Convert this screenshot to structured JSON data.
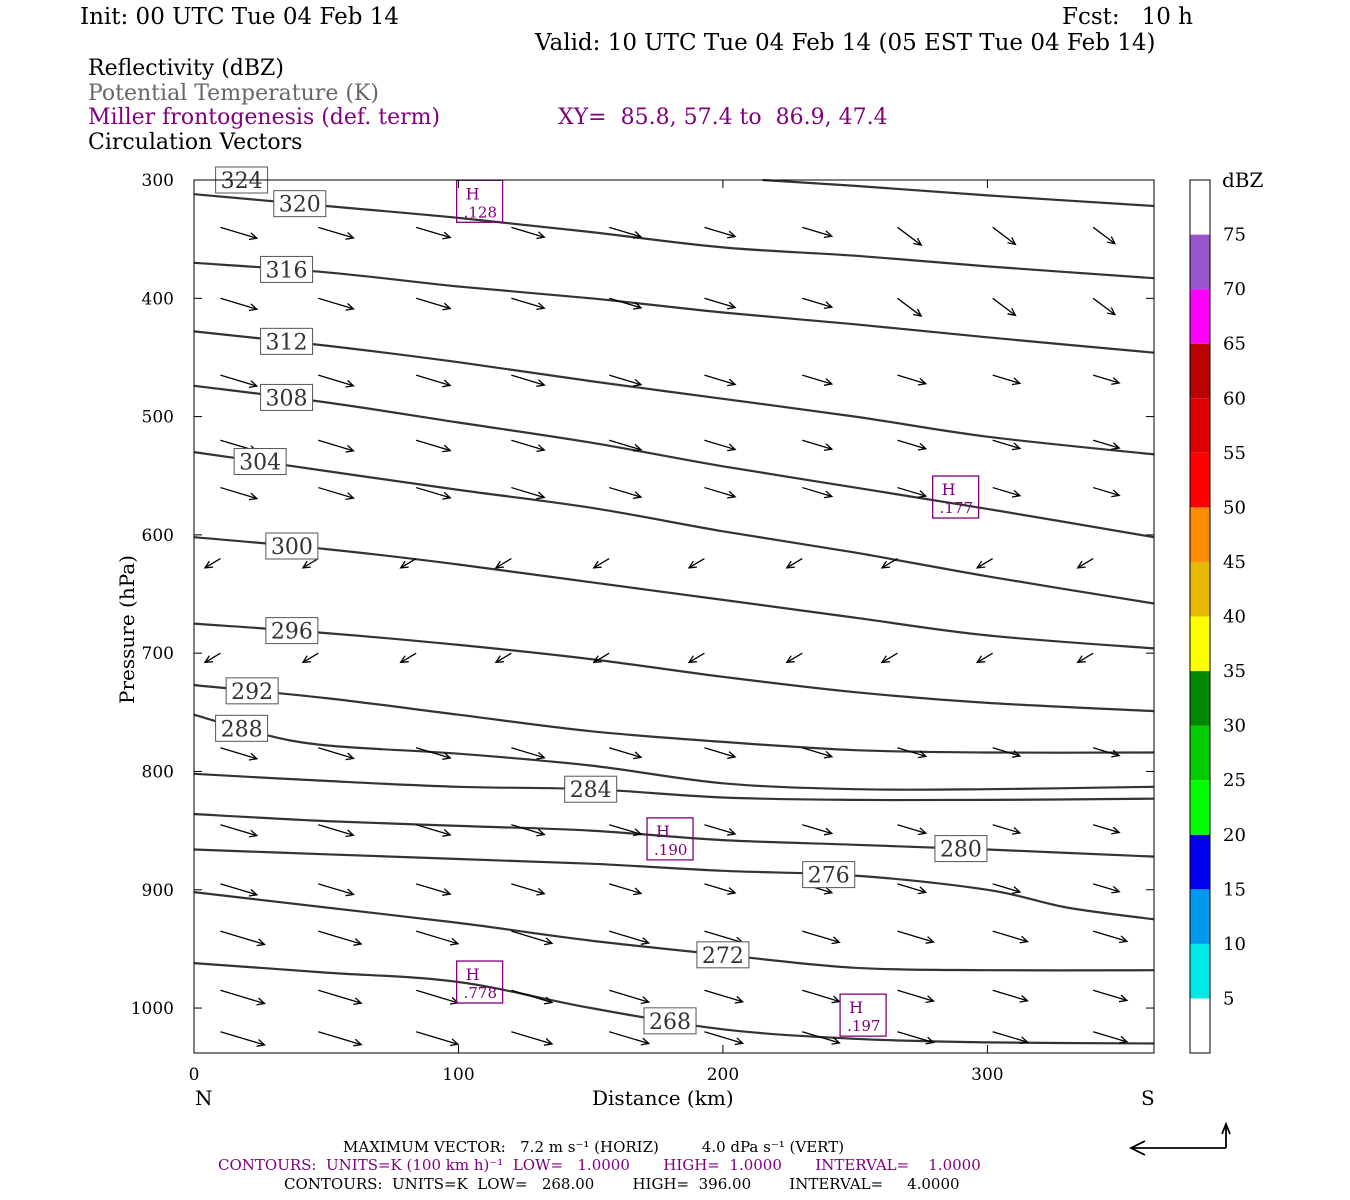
{
  "header": {
    "init": "Init: 00 UTC Tue 04 Feb 14",
    "fcst": "Fcst:   10 h",
    "valid": "Valid: 10 UTC Tue 04 Feb 14 (05 EST Tue 04 Feb 14)"
  },
  "legend": {
    "reflectivity": "Reflectivity (dBZ)",
    "theta": "Potential Temperature (K)",
    "miller": "Miller frontogenesis (def. term)",
    "xy": "XY=  85.8, 57.4 to  86.9, 47.4",
    "circulation": "Circulation Vectors"
  },
  "colors": {
    "purple": "#800080",
    "theta_gray": "#666666",
    "contour": "#333333"
  },
  "chart_data": {
    "type": "cross-section",
    "xlabel": "Distance (km)",
    "ylabel": "Pressure (hPa)",
    "xlim": [
      0,
      363
    ],
    "ylim": [
      300,
      1038
    ],
    "x_ticks": [
      0,
      100,
      200,
      300
    ],
    "y_ticks": [
      300,
      400,
      500,
      600,
      700,
      800,
      900,
      1000
    ],
    "x_end_labels": {
      "left": "N",
      "right": "S"
    },
    "colorbar": {
      "title": "dBZ",
      "levels": [
        5,
        10,
        15,
        20,
        25,
        30,
        35,
        40,
        45,
        50,
        55,
        60,
        65,
        70,
        75
      ],
      "colors": [
        "#ffffff",
        "#00e8e8",
        "#0099ee",
        "#0000ee",
        "#00ff00",
        "#00cc00",
        "#008800",
        "#ffff00",
        "#e6b800",
        "#ff8c00",
        "#ff0000",
        "#dd0000",
        "#bb0000",
        "#ff00ff",
        "#9955cc",
        "#ffffff"
      ]
    },
    "theta_contours": [
      {
        "label": "324",
        "points": [
          [
            215,
            300
          ],
          [
            250,
            305
          ],
          [
            300,
            313
          ],
          [
            363,
            322
          ]
        ]
      },
      {
        "label": "320",
        "points": [
          [
            0,
            312
          ],
          [
            50,
            322
          ],
          [
            100,
            332
          ],
          [
            150,
            344
          ],
          [
            200,
            357
          ],
          [
            250,
            364
          ],
          [
            300,
            373
          ],
          [
            363,
            383
          ]
        ]
      },
      {
        "label": "316",
        "points": [
          [
            0,
            370
          ],
          [
            50,
            378
          ],
          [
            100,
            390
          ],
          [
            150,
            400
          ],
          [
            200,
            412
          ],
          [
            250,
            422
          ],
          [
            300,
            433
          ],
          [
            363,
            446
          ]
        ]
      },
      {
        "label": "312",
        "points": [
          [
            0,
            428
          ],
          [
            50,
            440
          ],
          [
            100,
            454
          ],
          [
            150,
            470
          ],
          [
            200,
            485
          ],
          [
            250,
            500
          ],
          [
            300,
            517
          ],
          [
            363,
            532
          ]
        ]
      },
      {
        "label": "308",
        "points": [
          [
            0,
            474
          ],
          [
            50,
            488
          ],
          [
            100,
            505
          ],
          [
            150,
            522
          ],
          [
            200,
            542
          ],
          [
            250,
            560
          ],
          [
            300,
            578
          ],
          [
            363,
            602
          ]
        ]
      },
      {
        "label": "304",
        "points": [
          [
            0,
            530
          ],
          [
            50,
            546
          ],
          [
            100,
            562
          ],
          [
            150,
            577
          ],
          [
            200,
            597
          ],
          [
            250,
            615
          ],
          [
            300,
            635
          ],
          [
            363,
            658
          ]
        ]
      },
      {
        "label": "300",
        "points": [
          [
            0,
            602
          ],
          [
            50,
            612
          ],
          [
            100,
            625
          ],
          [
            150,
            640
          ],
          [
            200,
            655
          ],
          [
            250,
            670
          ],
          [
            300,
            685
          ],
          [
            363,
            696
          ]
        ]
      },
      {
        "label": "296",
        "points": [
          [
            0,
            675
          ],
          [
            50,
            683
          ],
          [
            100,
            693
          ],
          [
            150,
            705
          ],
          [
            200,
            720
          ],
          [
            250,
            733
          ],
          [
            300,
            742
          ],
          [
            363,
            749
          ]
        ]
      },
      {
        "label": "292",
        "points": [
          [
            0,
            727
          ],
          [
            50,
            738
          ],
          [
            100,
            752
          ],
          [
            150,
            766
          ],
          [
            200,
            775
          ],
          [
            250,
            782
          ],
          [
            300,
            784
          ],
          [
            363,
            784
          ]
        ]
      },
      {
        "label": "288",
        "points": [
          [
            0,
            752
          ],
          [
            25,
            768
          ],
          [
            50,
            778
          ],
          [
            100,
            785
          ],
          [
            150,
            795
          ],
          [
            200,
            810
          ],
          [
            250,
            815
          ],
          [
            300,
            815
          ],
          [
            363,
            813
          ]
        ]
      },
      {
        "label": "284",
        "points": [
          [
            0,
            802
          ],
          [
            50,
            808
          ],
          [
            100,
            813
          ],
          [
            150,
            815
          ],
          [
            200,
            822
          ],
          [
            250,
            824
          ],
          [
            300,
            824
          ],
          [
            363,
            823
          ]
        ]
      },
      {
        "label": "280",
        "points": [
          [
            0,
            836
          ],
          [
            50,
            842
          ],
          [
            100,
            846
          ],
          [
            150,
            850
          ],
          [
            200,
            858
          ],
          [
            250,
            862
          ],
          [
            300,
            866
          ],
          [
            363,
            872
          ]
        ]
      },
      {
        "label": "276",
        "points": [
          [
            0,
            866
          ],
          [
            50,
            870
          ],
          [
            100,
            874
          ],
          [
            150,
            878
          ],
          [
            200,
            884
          ],
          [
            250,
            888
          ],
          [
            300,
            900
          ],
          [
            330,
            915
          ],
          [
            363,
            925
          ]
        ]
      },
      {
        "label": "272",
        "points": [
          [
            0,
            902
          ],
          [
            50,
            915
          ],
          [
            100,
            928
          ],
          [
            150,
            943
          ],
          [
            200,
            955
          ],
          [
            250,
            966
          ],
          [
            300,
            968
          ],
          [
            363,
            968
          ]
        ]
      },
      {
        "label": "268",
        "points": [
          [
            0,
            962
          ],
          [
            50,
            970
          ],
          [
            100,
            978
          ],
          [
            150,
            1000
          ],
          [
            200,
            1018
          ],
          [
            250,
            1026
          ],
          [
            300,
            1029
          ],
          [
            363,
            1030
          ]
        ]
      }
    ],
    "frontogenesis_maxima": [
      {
        "label": "H",
        "value": ".128",
        "x": 108,
        "p": 318
      },
      {
        "label": "H",
        "value": ".177",
        "x": 288,
        "p": 568
      },
      {
        "label": "H",
        "value": ".190",
        "x": 180,
        "p": 857
      },
      {
        "label": "H",
        "value": ".778",
        "x": 108,
        "p": 978
      },
      {
        "label": "H",
        "value": ".197",
        "x": 253,
        "p": 1006
      }
    ],
    "footer": {
      "maxvec": "MAXIMUM VECTOR:   7.2 m s⁻¹ (HORIZ)         4.0 dPa s⁻¹ (VERT)",
      "contours1": "CONTOURS:  UNITS=K (100 km h)⁻¹  LOW=   1.0000       HIGH=  1.0000       INTERVAL=    1.0000",
      "contours2": "CONTOURS:  UNITS=K  LOW=   268.00        HIGH=  396.00        INTERVAL=     4.0000"
    }
  }
}
